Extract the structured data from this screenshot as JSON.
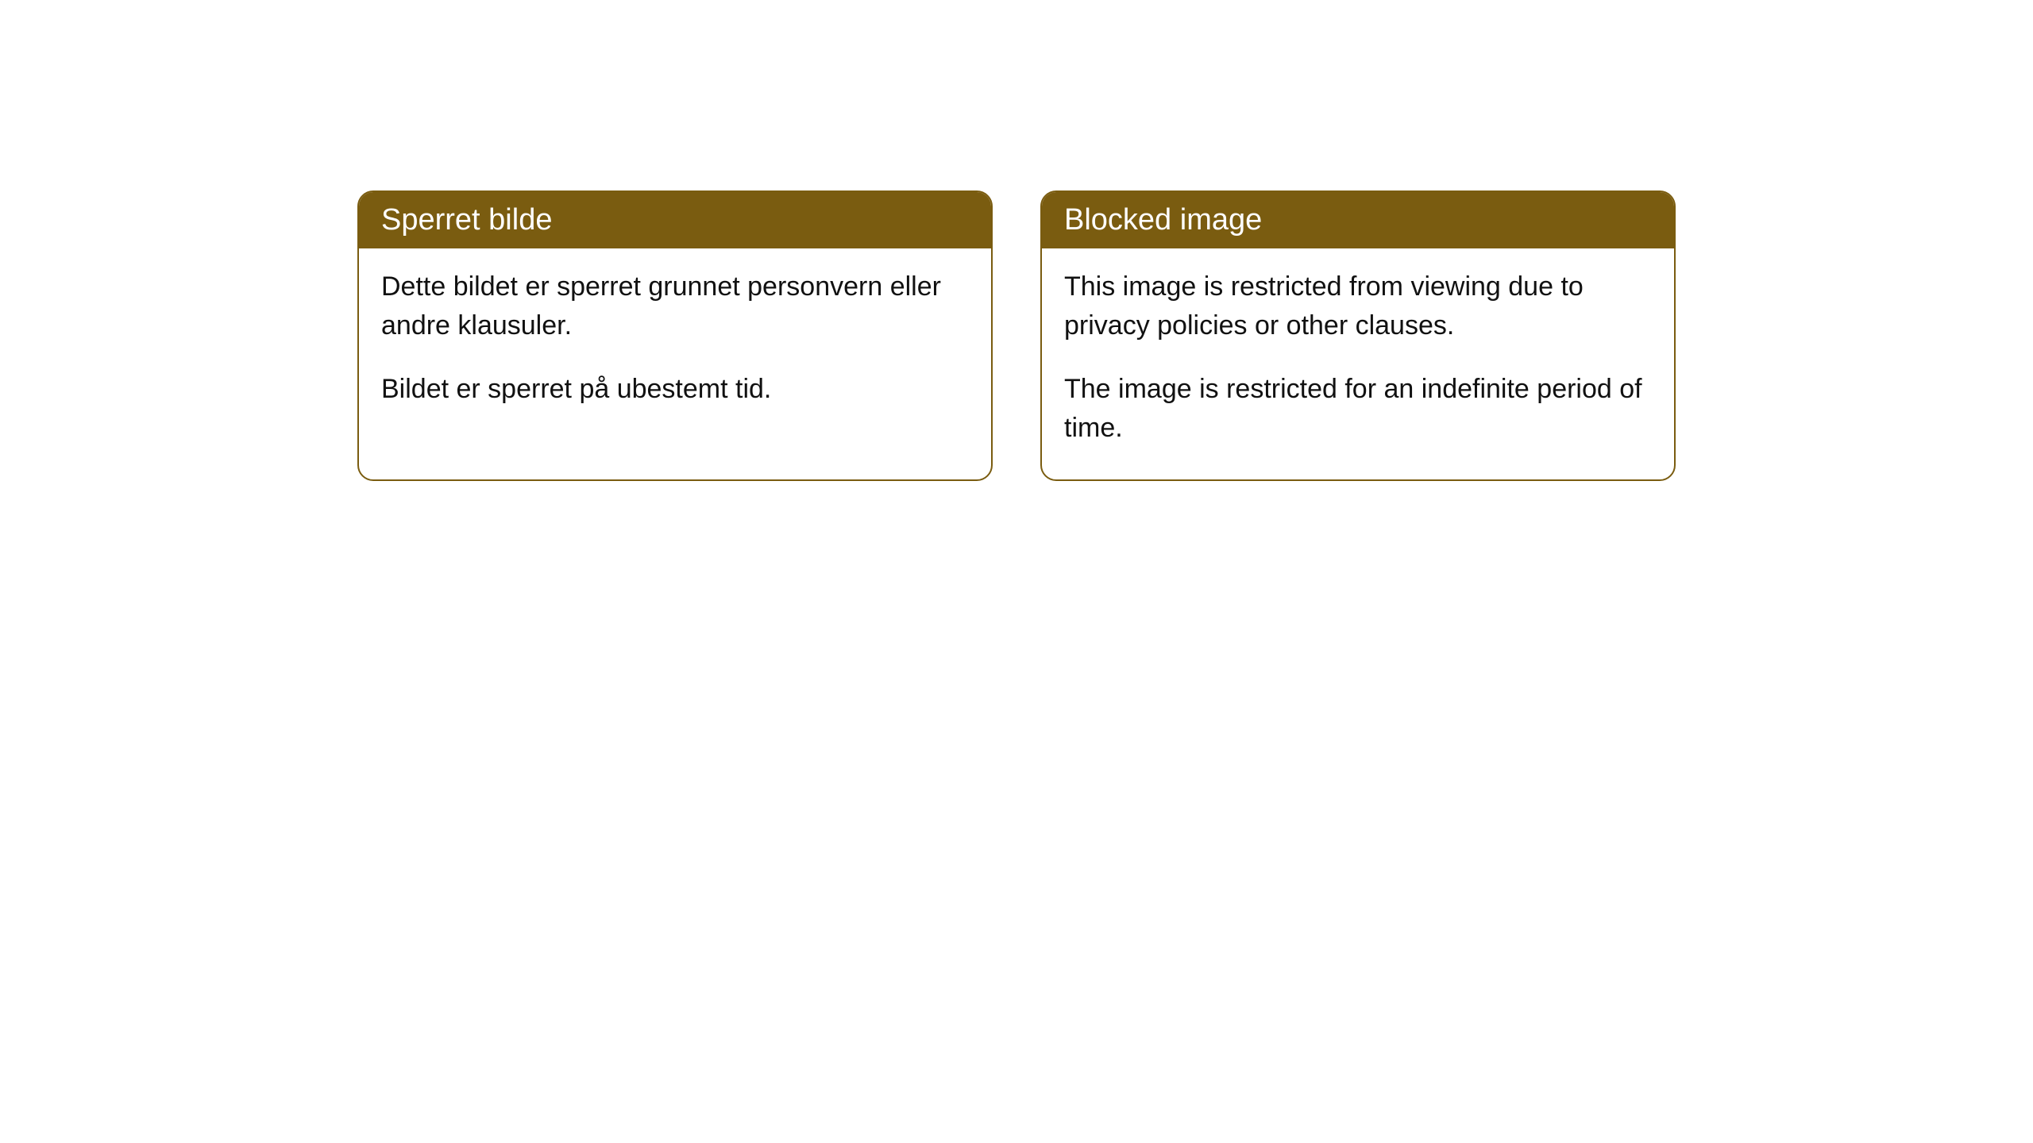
{
  "colors": {
    "header_bg": "#7a5c10",
    "header_text": "#ffffff",
    "border": "#7a5c10",
    "body_bg": "#ffffff",
    "body_text": "#111111"
  },
  "typography": {
    "header_fontsize": 38,
    "body_fontsize": 34,
    "font_family": "Arial, Helvetica, sans-serif"
  },
  "layout": {
    "border_radius": 20,
    "card_gap": 60
  },
  "cards": [
    {
      "title": "Sperret bilde",
      "paragraphs": [
        "Dette bildet er sperret grunnet personvern eller andre klausuler.",
        "Bildet er sperret på ubestemt tid."
      ]
    },
    {
      "title": "Blocked image",
      "paragraphs": [
        "This image is restricted from viewing due to privacy policies or other clauses.",
        "The image is restricted for an indefinite period of time."
      ]
    }
  ]
}
